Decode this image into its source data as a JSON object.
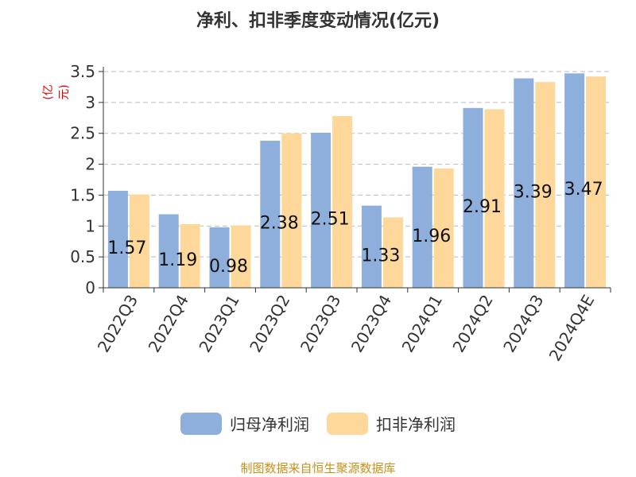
{
  "colors": {
    "series1": "#8eaedb",
    "series2": "#fdd89a",
    "unit": "#e00000",
    "source": "#c8901a",
    "grid": "#bbbbbb",
    "axis": "#333333"
  },
  "source_text": "制图数据来自恒生聚源数据库",
  "chart_data": {
    "type": "bar",
    "title": "净利、扣非季度变动情况(亿元)",
    "ylabel": "(亿元)",
    "xlabel": "",
    "ylim": [
      0,
      3.5
    ],
    "yticks": [
      "0",
      "0.5",
      "1",
      "1.5",
      "2",
      "2.5",
      "3",
      "3.5"
    ],
    "grid": true,
    "legend_position": "bottom",
    "categories": [
      "2022Q3",
      "2022Q4",
      "2023Q1",
      "2023Q2",
      "2023Q3",
      "2023Q4",
      "2024Q1",
      "2024Q2",
      "2024Q3",
      "2024Q4E"
    ],
    "series": [
      {
        "name": "归母净利润",
        "values": [
          1.57,
          1.19,
          0.98,
          2.38,
          2.51,
          1.33,
          1.96,
          2.91,
          3.39,
          3.47
        ],
        "labels": [
          "1.57",
          "1.19",
          "0.98",
          "2.38",
          "2.51",
          "1.33",
          "1.96",
          "2.91",
          "3.39",
          "3.47"
        ]
      },
      {
        "name": "扣非净利润",
        "values": [
          1.51,
          1.03,
          1.01,
          2.5,
          2.78,
          1.14,
          1.93,
          2.89,
          3.33,
          3.42
        ]
      }
    ]
  }
}
